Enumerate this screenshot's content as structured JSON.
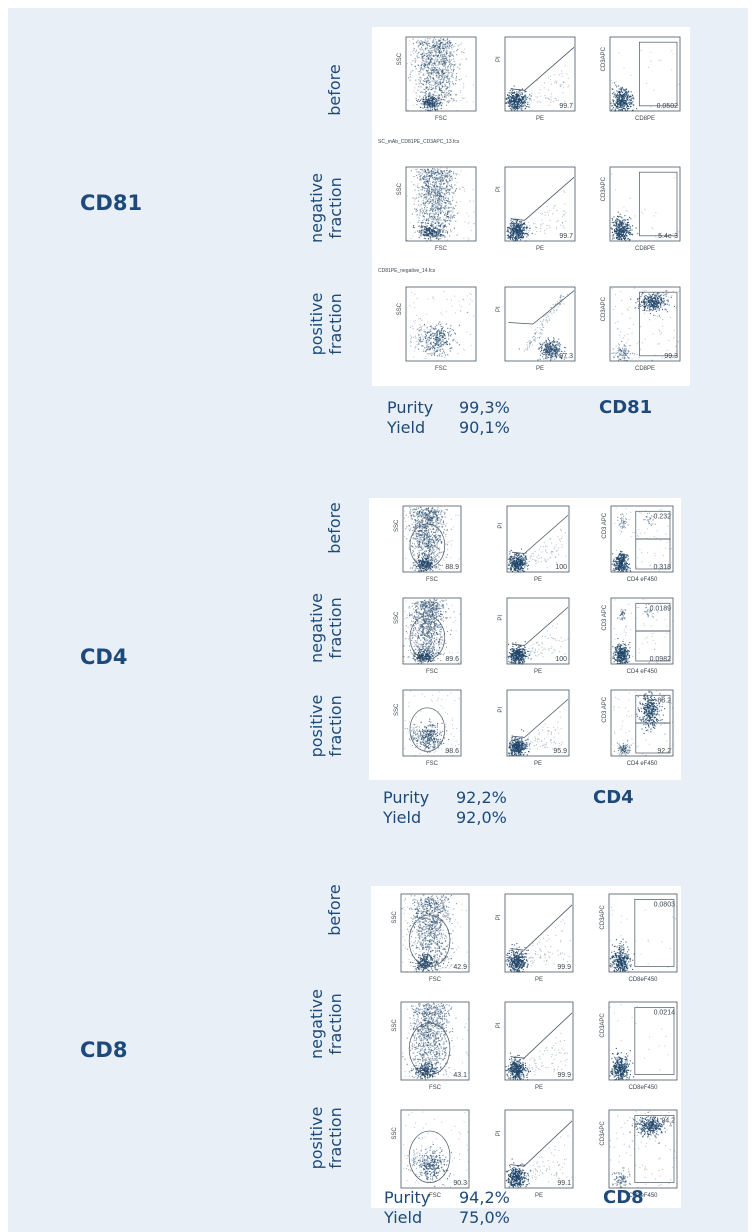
{
  "colors": {
    "background": "#e8eff6",
    "heading": "#1d4a7a",
    "dots": "#1f4468",
    "panel": "#ffffff"
  },
  "sections": [
    {
      "marker": "CD81",
      "row_labels": [
        [
          "before"
        ],
        [
          "negative",
          "fraction"
        ],
        [
          "positive",
          "fraction"
        ]
      ],
      "rows": [
        {
          "file_label": "SC_mAb_CD81PE_CD3APC_13.fcs",
          "plots": [
            {
              "kind": "scatter",
              "density": "high",
              "x_label": "FSC",
              "y_label": "SSC",
              "gate_value": ""
            },
            {
              "kind": "pi",
              "x_label": "PE",
              "y_label": "PI",
              "gate_value": "99.7"
            },
            {
              "kind": "marker",
              "x_label": "CD8PE",
              "y_label": "CD3APC",
              "gate_value": "0.0502"
            }
          ]
        },
        {
          "file_label": "CD81PE_negative_14.fcs",
          "plots": [
            {
              "kind": "scatter",
              "density": "high",
              "x_label": "FSC",
              "y_label": "SSC",
              "gate_value": ""
            },
            {
              "kind": "pi",
              "x_label": "PE",
              "y_label": "PI",
              "gate_value": "99.7"
            },
            {
              "kind": "marker",
              "x_label": "CD8PE",
              "y_label": "CD3APC",
              "gate_value": "5.4e-3"
            }
          ]
        },
        {
          "file_label": "",
          "plots": [
            {
              "kind": "scatter",
              "density": "low",
              "x_label": "FSC",
              "y_label": "SSC",
              "gate_value": ""
            },
            {
              "kind": "pi",
              "x_label": "PE",
              "y_label": "PI",
              "gate_value": "97.3"
            },
            {
              "kind": "marker",
              "x_label": "CD8PE",
              "y_label": "CD3APC",
              "gate_value": "99.3"
            }
          ]
        }
      ],
      "purity_label": "Purity",
      "yield_label": "Yield",
      "purity": "99,3%",
      "yield": "90,1%"
    },
    {
      "marker": "CD4",
      "row_labels": [
        [
          "before"
        ],
        [
          "negative",
          "fraction"
        ],
        [
          "positive",
          "fraction"
        ]
      ],
      "rows": [
        {
          "file_label": "",
          "plots": [
            {
              "kind": "scatter",
              "density": "high",
              "x_label": "FSC",
              "y_label": "SSC",
              "gate_value": "88.9"
            },
            {
              "kind": "pi",
              "x_label": "PE",
              "y_label": "PI",
              "gate_value": "100"
            },
            {
              "kind": "quad",
              "x_label": "CD4 eF450",
              "y_label": "CD3 APC",
              "gate_value": "0.232",
              "gate_value2": "0.318"
            }
          ]
        },
        {
          "file_label": "",
          "plots": [
            {
              "kind": "scatter",
              "density": "high",
              "x_label": "FSC",
              "y_label": "SSC",
              "gate_value": "89.6"
            },
            {
              "kind": "pi",
              "x_label": "PE",
              "y_label": "PI",
              "gate_value": "100"
            },
            {
              "kind": "quad",
              "x_label": "CD4 eF450",
              "y_label": "CD3 APC",
              "gate_value": "0.0189",
              "gate_value2": "0.0982"
            }
          ]
        },
        {
          "file_label": "",
          "plots": [
            {
              "kind": "scatter",
              "density": "low",
              "x_label": "FSC",
              "y_label": "SSC",
              "gate_value": "98.6"
            },
            {
              "kind": "pi",
              "x_label": "PE",
              "y_label": "PI",
              "gate_value": "95.9"
            },
            {
              "kind": "quad",
              "x_label": "CD4 eF450",
              "y_label": "CD3 APC",
              "gate_value": "88.2",
              "gate_value2": "92.2"
            }
          ]
        }
      ],
      "purity_label": "Purity",
      "yield_label": "Yield",
      "purity": "92,2%",
      "yield": "92,0%"
    },
    {
      "marker": "CD8",
      "row_labels": [
        [
          "before"
        ],
        [
          "negative",
          "fraction"
        ],
        [
          "positive",
          "fraction"
        ]
      ],
      "rows": [
        {
          "file_label": "",
          "plots": [
            {
              "kind": "scatter",
              "density": "high",
              "x_label": "FSC",
              "y_label": "SSC",
              "gate_value": "42.9"
            },
            {
              "kind": "pi",
              "x_label": "PE",
              "y_label": "PI",
              "gate_value": "99.9"
            },
            {
              "kind": "marker",
              "x_label": "CD8eF450",
              "y_label": "CD3APC",
              "gate_value": "0.0803"
            }
          ]
        },
        {
          "file_label": "",
          "plots": [
            {
              "kind": "scatter",
              "density": "high",
              "x_label": "FSC",
              "y_label": "SSC",
              "gate_value": "43.1"
            },
            {
              "kind": "pi",
              "x_label": "PE",
              "y_label": "PI",
              "gate_value": "99.9"
            },
            {
              "kind": "marker",
              "x_label": "CD8eF450",
              "y_label": "CD3APC",
              "gate_value": "0.0214"
            }
          ]
        },
        {
          "file_label": "",
          "plots": [
            {
              "kind": "scatter",
              "density": "low",
              "x_label": "FSC",
              "y_label": "SSC",
              "gate_value": "90.3"
            },
            {
              "kind": "pi",
              "x_label": "PE",
              "y_label": "PI",
              "gate_value": "99.1"
            },
            {
              "kind": "marker",
              "x_label": "CD8eF450",
              "y_label": "CD3APC",
              "gate_value": "94.2"
            }
          ]
        }
      ],
      "purity_label": "Purity",
      "yield_label": "Yield",
      "purity": "94,2%",
      "yield": "75,0%"
    }
  ]
}
